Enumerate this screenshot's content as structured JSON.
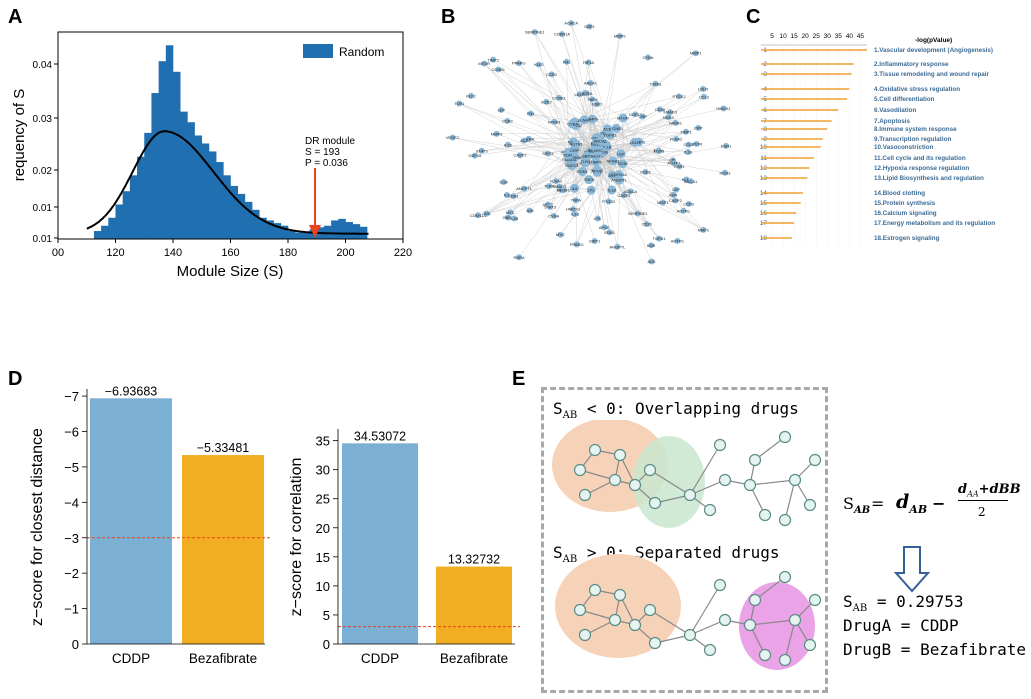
{
  "panels": {
    "a": "A",
    "b": "B",
    "c": "C",
    "d": "D",
    "e": "E"
  },
  "colors": {
    "bar_blue": "#1f6fb1",
    "curve": "#000000",
    "arrow": "#e8431e",
    "light_blue": "#7bafd4",
    "orange": "#f2ae23",
    "ref_line": "#e8431e",
    "c_bar": "#f0a030",
    "c_text": "#3b6b95",
    "node": "#8ab8d8",
    "blob_orange": "#f6d3b8",
    "blob_green": "#c9e6cf",
    "blob_pink": "#e9a3e6",
    "node_e": "#e6f4f1",
    "node_e_stroke": "#5a8c86"
  },
  "chart_data": [
    {
      "type": "histogram",
      "id": "A",
      "xlabel": "Module Size (S)",
      "ylabel": "requency of S",
      "xlim": [
        100,
        220
      ],
      "xticks": [
        "00",
        "120",
        "140",
        "160",
        "180",
        "200",
        "220"
      ],
      "xtick_values": [
        100,
        120,
        140,
        160,
        180,
        200,
        220
      ],
      "ylim": [
        0.009,
        0.048
      ],
      "yticks": [
        "0.01",
        "0.01",
        "0.02",
        "0.03",
        "0.04"
      ],
      "ytick_values": [
        0.01,
        0.0125,
        0.02,
        0.03,
        0.04
      ],
      "legend": "Random",
      "legend_position": "top-right",
      "bin_width": 2.5,
      "bin_starts": [
        112.5,
        115,
        117.5,
        120,
        122.5,
        125,
        127.5,
        130,
        132.5,
        135,
        137.5,
        140,
        142.5,
        145,
        147.5,
        150,
        152.5,
        155,
        157.5,
        160,
        162.5,
        165,
        167.5,
        170,
        172.5,
        175,
        177.5,
        180,
        182.5,
        185,
        187.5,
        190,
        192.5,
        195,
        197.5,
        200,
        202.5,
        205
      ],
      "values": [
        0.0105,
        0.0115,
        0.013,
        0.0155,
        0.018,
        0.021,
        0.0245,
        0.029,
        0.0365,
        0.0425,
        0.0455,
        0.0405,
        0.033,
        0.031,
        0.0285,
        0.027,
        0.0255,
        0.0235,
        0.021,
        0.019,
        0.0175,
        0.016,
        0.0145,
        0.013,
        0.0125,
        0.012,
        0.0115,
        0.0105,
        0.0102,
        0.0103,
        0.0108,
        0.0112,
        0.0115,
        0.0125,
        0.0128,
        0.0122,
        0.0118,
        0.0113
      ],
      "curve": {
        "peak_x": 137,
        "peak_y": 0.0293,
        "start_x": 110,
        "end_x": 208,
        "base_y": 0.01
      },
      "annotation": {
        "lines": [
          "DR module",
          "S = 193",
          "P = 0.036"
        ],
        "arrow_x": 190
      }
    },
    {
      "type": "bar",
      "id": "C",
      "title": "-log(pValue)",
      "axis_ticks": [
        "5",
        "10",
        "15",
        "20",
        "25",
        "30",
        "35",
        "40",
        "45"
      ],
      "axis_values": [
        5,
        10,
        15,
        20,
        25,
        30,
        35,
        40,
        45
      ],
      "categories": [
        "1",
        "2",
        "3",
        "4",
        "5",
        "6",
        "7",
        "8",
        "9",
        "10",
        "11",
        "12",
        "13",
        "14",
        "15",
        "16",
        "17",
        "18"
      ],
      "values": [
        48,
        42,
        41,
        40,
        39,
        35,
        32,
        30,
        28,
        27,
        24,
        22,
        21,
        19,
        18,
        16,
        15,
        14
      ],
      "labels": [
        "1.Vascular development (Angiogenesis)",
        "2.Inflammatory response",
        "3.Tissue remodeling and wound repair",
        "4.Oxidative stress regulation",
        "5.Cell differentiation",
        "6.Vasodilation",
        "7.Apoptosis",
        "8.Immune system response",
        "9.Transcription regulation",
        "10.Vasoconstriction",
        "11.Cell cycle and its regulation",
        "12.Hypoxia response regulation",
        "13.Lipid Biosynthesis and regulation",
        "14.Blood clotting",
        "15.Protein synthesis",
        "16.Calcium signaling",
        "17.Energy metabolism and its regulation",
        "18.Estrogen signaling"
      ]
    },
    {
      "type": "bar",
      "id": "D1",
      "ylabel": "z−score for closest distance",
      "categories": [
        "CDDP",
        "Bezafibrate"
      ],
      "values": [
        -6.93683,
        -5.33481
      ],
      "value_labels": [
        "−6.93683",
        "−5.33481"
      ],
      "yticks": [
        "0",
        "−1",
        "−2",
        "−3",
        "−4",
        "−5",
        "−6",
        "−7"
      ],
      "ylim": [
        0,
        -7.2
      ],
      "reference_line": -3
    },
    {
      "type": "bar",
      "id": "D2",
      "ylabel": "z−score for correlation",
      "categories": [
        "CDDP",
        "Bezafibrate"
      ],
      "values": [
        34.53072,
        13.32732
      ],
      "value_labels": [
        "34.53072",
        "13.32732"
      ],
      "yticks": [
        "0",
        "5",
        "10",
        "15",
        "20",
        "25",
        "30",
        "35"
      ],
      "ylim": [
        0,
        37
      ],
      "reference_line": 3
    }
  ],
  "network_b": {
    "labels": [
      "RXRA",
      "LPL",
      "VEGFC",
      "FLNA2",
      "CCNB1",
      "ABCA1",
      "CD36",
      "MYC",
      "ACE",
      "ANGPTL",
      "KLF2",
      "CASP2",
      "SIRT1",
      "IL18",
      "AGTR1",
      "TNFA",
      "CCR2",
      "MMP1",
      "EDN1",
      "ESR1",
      "HIF1A",
      "NOS3",
      "PPARG",
      "APOE",
      "GDF15",
      "SOD2",
      "HMOX1",
      "NFKB1",
      "JUN",
      "PTGS2",
      "IL6",
      "CRP",
      "STAT3",
      "SERPINE1",
      "TIMP1",
      "CDKN1A",
      "FN1",
      "LDLR",
      "MTOR",
      "CYBA",
      "LEP",
      "TLR4",
      "GBP1",
      "MMP9",
      "IL1B",
      "ACACA",
      "SMAD3",
      "CCL2",
      "TGFB1",
      "KDR"
    ]
  },
  "panel_e": {
    "overlap_label": "S_AB < 0: Overlapping drugs",
    "overlap_prefix": "S",
    "overlap_sub": "AB",
    "overlap_rest": " < 0: Overlapping drugs",
    "separate_prefix": "S",
    "separate_sub": "AB",
    "separate_rest": " > 0: Separated drugs",
    "formula_s": "S",
    "formula_s_sub": "AB",
    "formula_eq": " = ",
    "formula_d": "d",
    "formula_d_sub": "AB",
    "formula_minus": " − ",
    "formula_num_d": "d",
    "formula_num_sub": "AA",
    "formula_num_rest": "+dBB",
    "formula_den": "2",
    "result_prefix": "S",
    "result_sub": "AB",
    "result_rest": " = 0.29753",
    "drug_a": "DrugA = CDDP",
    "drug_b": "DrugB = Bezafibrate"
  }
}
